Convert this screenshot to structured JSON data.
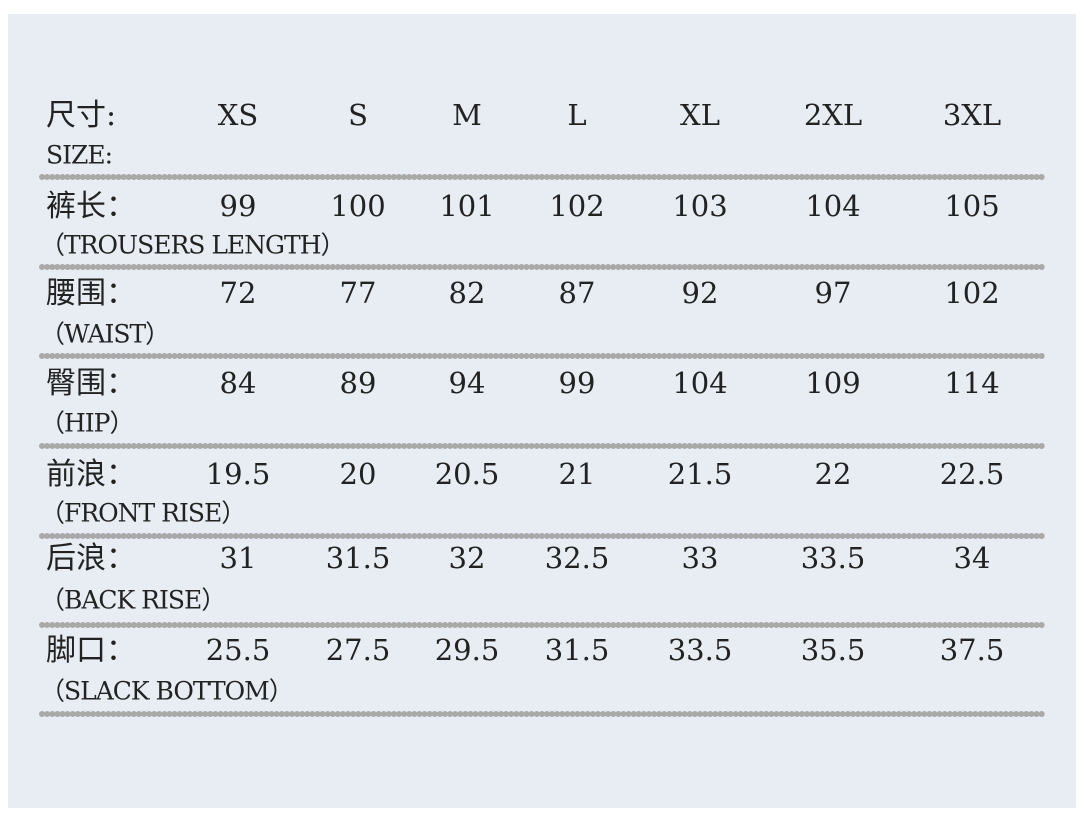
{
  "header": {
    "label_zh": "尺寸:",
    "label_en": "SIZE:",
    "sizes": [
      "XS",
      "S",
      "M",
      "L",
      "XL",
      "2XL",
      "3XL"
    ]
  },
  "rows": [
    {
      "label_zh": "裤长：",
      "label_en": "（TROUSERS LENGTH）",
      "values": [
        99,
        100,
        101,
        102,
        103,
        104,
        105
      ]
    },
    {
      "label_zh": "腰围：",
      "label_en": "（WAIST）",
      "values": [
        72,
        77,
        82,
        87,
        92,
        97,
        102
      ]
    },
    {
      "label_zh": "臀围：",
      "label_en": "（HIP）",
      "values": [
        84,
        89,
        94,
        99,
        104,
        109,
        114
      ]
    },
    {
      "label_zh": "前浪：",
      "label_en": "（FRONT RISE）",
      "values": [
        19.5,
        20,
        20.5,
        21,
        21.5,
        22,
        22.5
      ]
    },
    {
      "label_zh": "后浪：",
      "label_en": "（BACK RISE）",
      "values": [
        31,
        31.5,
        32,
        32.5,
        33,
        33.5,
        34
      ]
    },
    {
      "label_zh": "脚口：",
      "label_en": "（SLACK BOTTOM）",
      "values": [
        25.5,
        27.5,
        29.5,
        31.5,
        33.5,
        35.5,
        37.5
      ]
    }
  ]
}
